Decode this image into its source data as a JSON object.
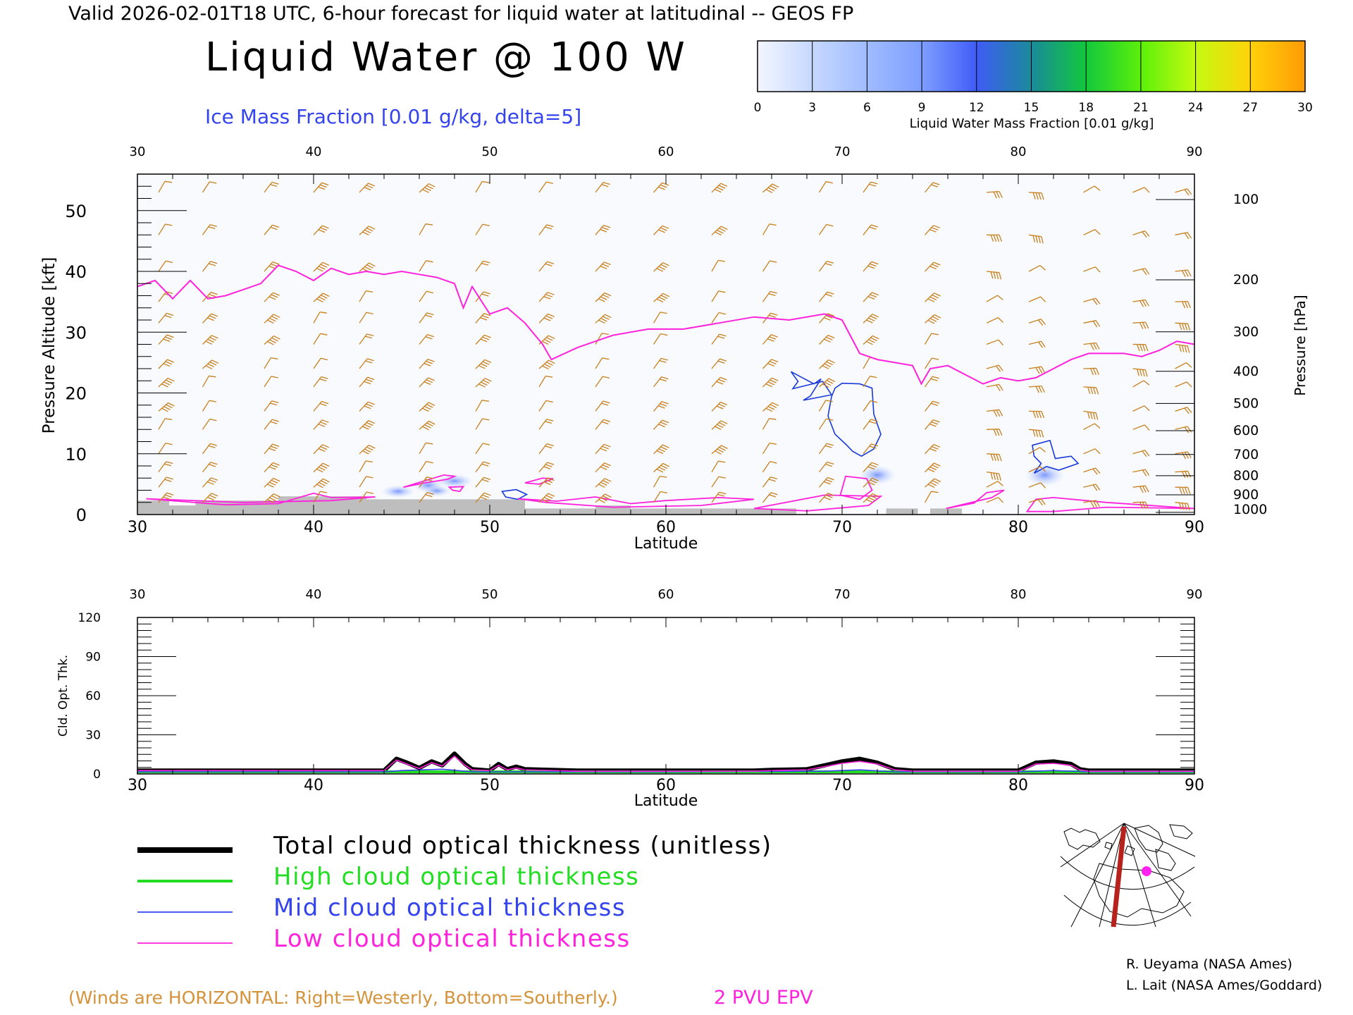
{
  "header": {
    "valid_line": "Valid 2026-02-01T18 UTC, 6-hour forecast for liquid water at latitudinal -- GEOS FP",
    "title": "Liquid Water @ 100 W",
    "subtitle": "Ice Mass Fraction [0.01 g/kg, delta=5]"
  },
  "colorbar": {
    "ticks": [
      "0",
      "3",
      "6",
      "9",
      "12",
      "15",
      "18",
      "21",
      "24",
      "27",
      "30"
    ],
    "label": "Liquid Water Mass Fraction [0.01 g/kg]",
    "colors": [
      "#f3f6ff",
      "#c6d8ff",
      "#9fbcff",
      "#7e9eff",
      "#3f5cf6",
      "#1a8a9a",
      "#12c83c",
      "#5cf00a",
      "#c4fa10",
      "#ffd20a",
      "#ff9a06",
      "#ff4a06"
    ]
  },
  "panel1": {
    "ylabel_left": "Pressure Altitude [kft]",
    "ylabel_right": "Pressure [hPa]",
    "xlabel": "Latitude",
    "xticks": [
      "30",
      "40",
      "50",
      "60",
      "70",
      "80",
      "90"
    ],
    "yticks_left": [
      "0",
      "10",
      "20",
      "30",
      "40",
      "50"
    ],
    "yticks_right": [
      "100",
      "200",
      "300",
      "400",
      "500",
      "600",
      "700",
      "800",
      "900",
      "1000"
    ]
  },
  "panel2": {
    "ylabel": "Cld. Opt. Thk.",
    "xlabel": "Latitude",
    "xticks": [
      "30",
      "40",
      "50",
      "60",
      "70",
      "80",
      "90"
    ],
    "yticks": [
      "0",
      "30",
      "60",
      "90",
      "120"
    ]
  },
  "legend": {
    "items": [
      {
        "label": "Total cloud optical thickness (unitless)",
        "color": "#000000"
      },
      {
        "label": "High cloud optical thickness",
        "color": "#22dd22"
      },
      {
        "label": "Mid cloud optical thickness",
        "color": "#3344ee"
      },
      {
        "label": "Low cloud optical thickness",
        "color": "#ff22dd"
      }
    ]
  },
  "footer": {
    "winds_note": "(Winds are HORIZONTAL: Right=Westerly, Bottom=Southerly.)",
    "epv_label": "2 PVU EPV",
    "credit1": "R. Ueyama (NASA Ames)",
    "credit2": "L. Lait (NASA Ames/Goddard)"
  },
  "colors": {
    "wind_barb": "#c8801e",
    "epv": "#ff22dd",
    "ice_contour": "#1a3ad8",
    "terrain": "#bebebe"
  },
  "chart_data": [
    {
      "type": "line",
      "title": "Liquid Water @ 100 W",
      "xlabel": "Latitude",
      "ylabel": "Pressure Altitude [kft]",
      "xlim": [
        30,
        90
      ],
      "ylim": [
        0,
        56
      ],
      "series": [
        {
          "name": "2 PVU EPV",
          "x": [
            30,
            31,
            32,
            33,
            34,
            35,
            36,
            37,
            38,
            39,
            40,
            41,
            42,
            43,
            44,
            45,
            46,
            47,
            48,
            48.5,
            49,
            50,
            51,
            52,
            53,
            53.5,
            55,
            57,
            59,
            61,
            63,
            65,
            67,
            68,
            69,
            70,
            71,
            72,
            73,
            74,
            74.5,
            75,
            76,
            77,
            78,
            79,
            80,
            81,
            82,
            83,
            84,
            85,
            86,
            87,
            88,
            89,
            90
          ],
          "y": [
            37.5,
            38.5,
            35.5,
            38.5,
            35.5,
            36,
            37,
            38,
            41,
            40,
            38.5,
            40.5,
            39.5,
            40,
            39.5,
            40,
            39.5,
            39,
            38,
            34,
            37.5,
            33,
            34,
            31.5,
            28,
            25.5,
            27.5,
            29.5,
            30.5,
            30.5,
            31.5,
            32.5,
            32,
            32.5,
            33,
            32,
            26.5,
            25.5,
            25,
            24.5,
            21.5,
            24,
            24.5,
            23,
            21.5,
            22.5,
            22,
            22.5,
            24,
            25.5,
            26.5,
            26.5,
            26.5,
            26,
            27,
            28.5,
            28
          ]
        }
      ]
    },
    {
      "type": "line",
      "title": "",
      "xlabel": "Latitude",
      "ylabel": "Cld. Opt. Thk.",
      "xlim": [
        30,
        90
      ],
      "ylim": [
        0,
        120
      ],
      "series": [
        {
          "name": "Total cloud optical thickness (unitless)",
          "x": [
            30,
            44,
            44.7,
            45.3,
            46,
            46.7,
            47.3,
            48,
            48.6,
            49,
            50,
            50.5,
            51,
            51.5,
            52,
            55,
            60,
            65,
            66,
            68,
            69,
            70,
            71,
            72,
            73,
            74,
            76,
            78,
            80,
            80.5,
            81,
            82,
            83,
            83.5,
            84,
            86,
            88,
            90
          ],
          "y": [
            1,
            1,
            10,
            7,
            3,
            8,
            5,
            14,
            6,
            2,
            1,
            6,
            2,
            4,
            2,
            1,
            1,
            1,
            1.5,
            2,
            5,
            8,
            10,
            7,
            2,
            1,
            1,
            1,
            1,
            4,
            7,
            8,
            6,
            2,
            1,
            1,
            1,
            1
          ]
        },
        {
          "name": "High cloud optical thickness",
          "x": [
            30,
            90
          ],
          "y": [
            0,
            0
          ]
        },
        {
          "name": "Mid cloud optical thickness",
          "x": [
            30,
            44,
            45,
            47.3,
            49,
            60,
            69,
            71,
            73,
            80,
            82,
            84,
            90
          ],
          "y": [
            0,
            0,
            1,
            2,
            0,
            0,
            0.5,
            1.5,
            0,
            0,
            1,
            0,
            0
          ]
        },
        {
          "name": "Low cloud optical thickness",
          "x": [
            30,
            44,
            44.7,
            45.3,
            46,
            46.7,
            47.3,
            48,
            48.6,
            49,
            50,
            50.5,
            51,
            51.5,
            52,
            55,
            60,
            65,
            66,
            68,
            69,
            70,
            71,
            72,
            73,
            74,
            76,
            78,
            80,
            80.5,
            81,
            82,
            83,
            83.5,
            84,
            86,
            88,
            90
          ],
          "y": [
            1,
            1,
            9,
            6,
            2.5,
            7,
            4.5,
            12,
            5,
            1.5,
            1,
            5,
            1.5,
            3,
            1.5,
            0.5,
            0.5,
            0.5,
            1,
            1.5,
            4,
            6.5,
            8,
            6,
            1.5,
            0.5,
            0.5,
            0.5,
            0.5,
            3,
            6,
            6.5,
            5,
            1.5,
            0.5,
            0.5,
            0.5,
            0.5
          ]
        }
      ]
    }
  ]
}
